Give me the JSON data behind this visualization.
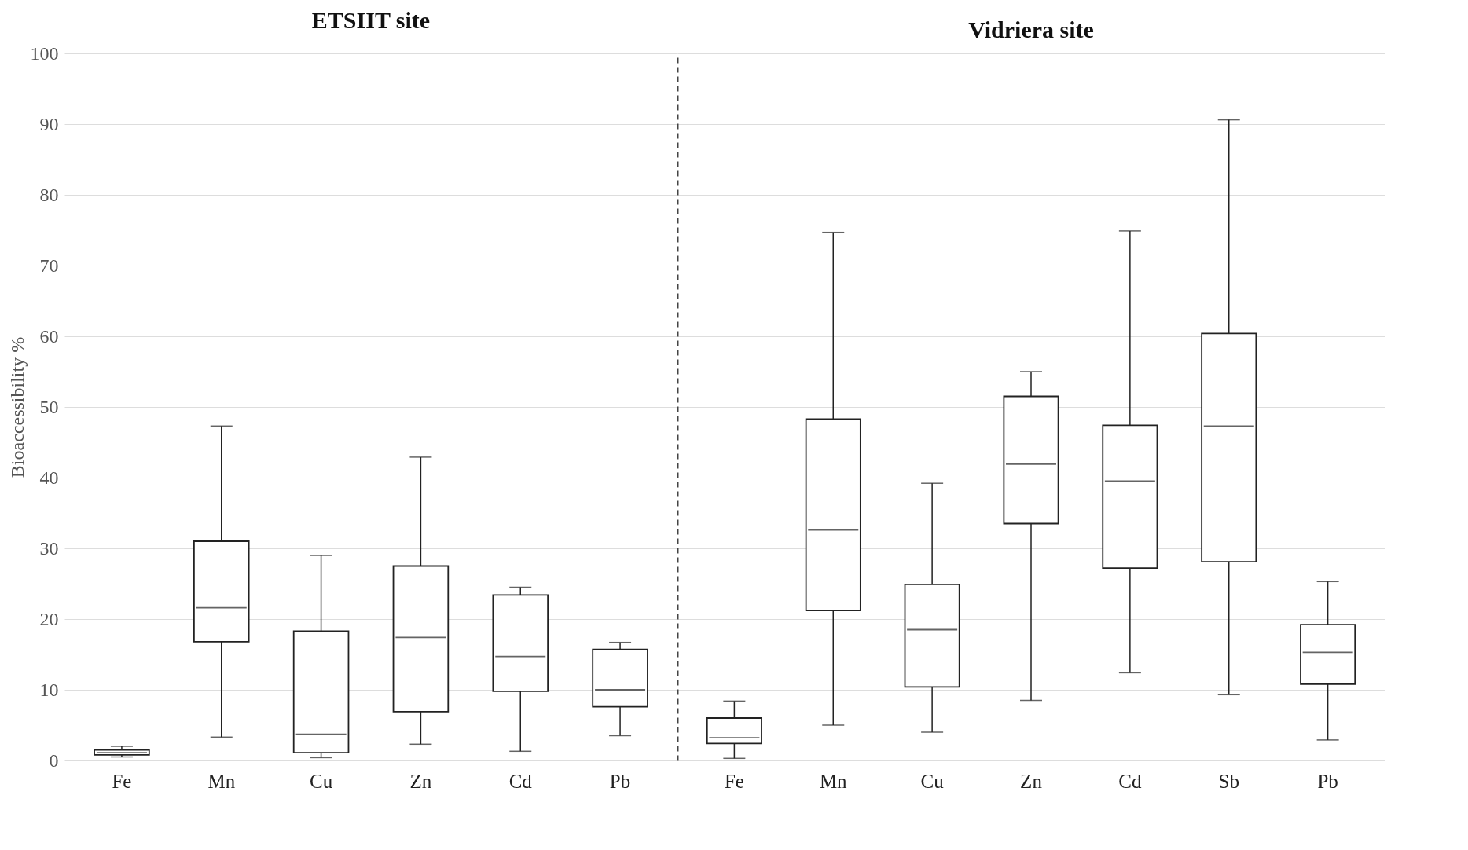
{
  "chart_data": [
    {
      "type": "box",
      "title": "ETSIIT site",
      "ylabel": "Bioaccessibility %",
      "categories": [
        "Fe",
        "Mn",
        "Cu",
        "Zn",
        "Cd",
        "Pb"
      ],
      "ylim": [
        0,
        100
      ],
      "yticks": [
        0,
        10,
        20,
        30,
        40,
        50,
        60,
        70,
        80,
        90,
        100
      ],
      "grid": "y",
      "boxes": [
        {
          "low": 0.5,
          "q1": 0.8,
          "median": 1.1,
          "q3": 1.5,
          "high": 2
        },
        {
          "low": 3.3,
          "q1": 16.8,
          "median": 21.6,
          "q3": 31.0,
          "high": 47.3
        },
        {
          "low": 0.4,
          "q1": 1.1,
          "median": 3.7,
          "q3": 18.3,
          "high": 29.0
        },
        {
          "low": 2.3,
          "q1": 6.9,
          "median": 17.4,
          "q3": 27.5,
          "high": 42.9
        },
        {
          "low": 1.3,
          "q1": 9.8,
          "median": 14.7,
          "q3": 23.4,
          "high": 24.5
        },
        {
          "low": 3.5,
          "q1": 7.6,
          "median": 10.0,
          "q3": 15.7,
          "high": 16.7
        }
      ]
    },
    {
      "type": "box",
      "title": "Vidriera site",
      "categories": [
        "Fe",
        "Mn",
        "Cu",
        "Zn",
        "Cd",
        "Sb",
        "Pb"
      ],
      "ylim": [
        0,
        100
      ],
      "yticks": [
        0,
        10,
        20,
        30,
        40,
        50,
        60,
        70,
        80,
        90,
        100
      ],
      "grid": "y",
      "tick_labels": "x",
      "boxes": [
        {
          "low": 0.3,
          "q1": 2.4,
          "median": 3.2,
          "q3": 6.0,
          "high": 8.4
        },
        {
          "low": 5.0,
          "q1": 21.2,
          "median": 32.6,
          "q3": 48.3,
          "high": 74.7
        },
        {
          "low": 4.0,
          "q1": 10.4,
          "median": 18.5,
          "q3": 24.9,
          "high": 39.2
        },
        {
          "low": 8.5,
          "q1": 33.5,
          "median": 41.9,
          "q3": 51.5,
          "high": 55.0
        },
        {
          "low": 12.4,
          "q1": 27.2,
          "median": 39.5,
          "q3": 47.4,
          "high": 74.9
        },
        {
          "low": 9.3,
          "q1": 28.1,
          "median": 47.3,
          "q3": 60.4,
          "high": 90.6
        },
        {
          "low": 2.9,
          "q1": 10.8,
          "median": 15.3,
          "q3": 19.2,
          "high": 25.3
        }
      ]
    }
  ]
}
